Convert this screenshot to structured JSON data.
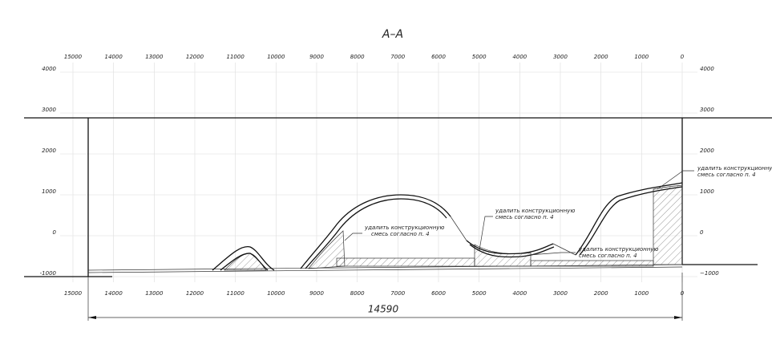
{
  "header": {
    "title": "А–А"
  },
  "top_scale": [
    "15000",
    "14000",
    "13000",
    "12000",
    "11000",
    "10000",
    "9000",
    "8000",
    "7000",
    "6000",
    "5000",
    "4000",
    "3000",
    "2000",
    "1000",
    "0"
  ],
  "bottom_scale": [
    "15000",
    "14000",
    "13000",
    "12000",
    "11000",
    "10000",
    "9000",
    "8000",
    "7000",
    "6000",
    "5000",
    "4000",
    "3000",
    "2000",
    "1000",
    "0"
  ],
  "left_scale": [
    "4000",
    "3000",
    "2000",
    "1000",
    "0",
    "-1000"
  ],
  "right_scale": [
    "4000",
    "3000",
    "2000",
    "1000",
    "0",
    "−1000"
  ],
  "annotations": [
    {
      "lines": [
        "удалить конструкционную",
        "смесь согласно п. 4"
      ]
    },
    {
      "lines": [
        "удалить конструкционную",
        "смесь согласно п. 4"
      ]
    },
    {
      "lines": [
        "удалить конструкционную",
        "смесь согласно п. 4"
      ]
    },
    {
      "lines": [
        "удалить конструкционную",
        "смесь согласно п. 4"
      ]
    }
  ],
  "dimension": {
    "label": "14590"
  }
}
